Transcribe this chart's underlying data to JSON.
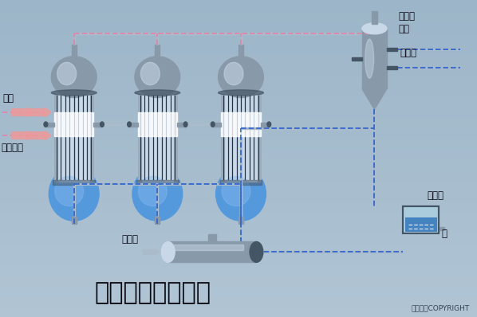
{
  "bg_color": "#b0c4d4",
  "title": "顺流加料蒸发流程",
  "title_fontsize": 22,
  "copyright": "东方仿真COPYRIGHT",
  "label_料液": "料液",
  "label_加热蒸汽": "加热蒸汽",
  "label_完成液": "完成液",
  "label_不凝性气体": "不凝性\n气体",
  "label_冷却水": "冷却水",
  "label_集水池": "集水池",
  "label_水": "水",
  "metal_mid": "#8899aa",
  "metal_light": "#c8d8e8",
  "metal_dark": "#445566",
  "liquid_blue": "#5599dd",
  "pipe_gray": "#aabbcc",
  "pink_dash": "#dd88aa",
  "blue_dash": "#3366cc"
}
